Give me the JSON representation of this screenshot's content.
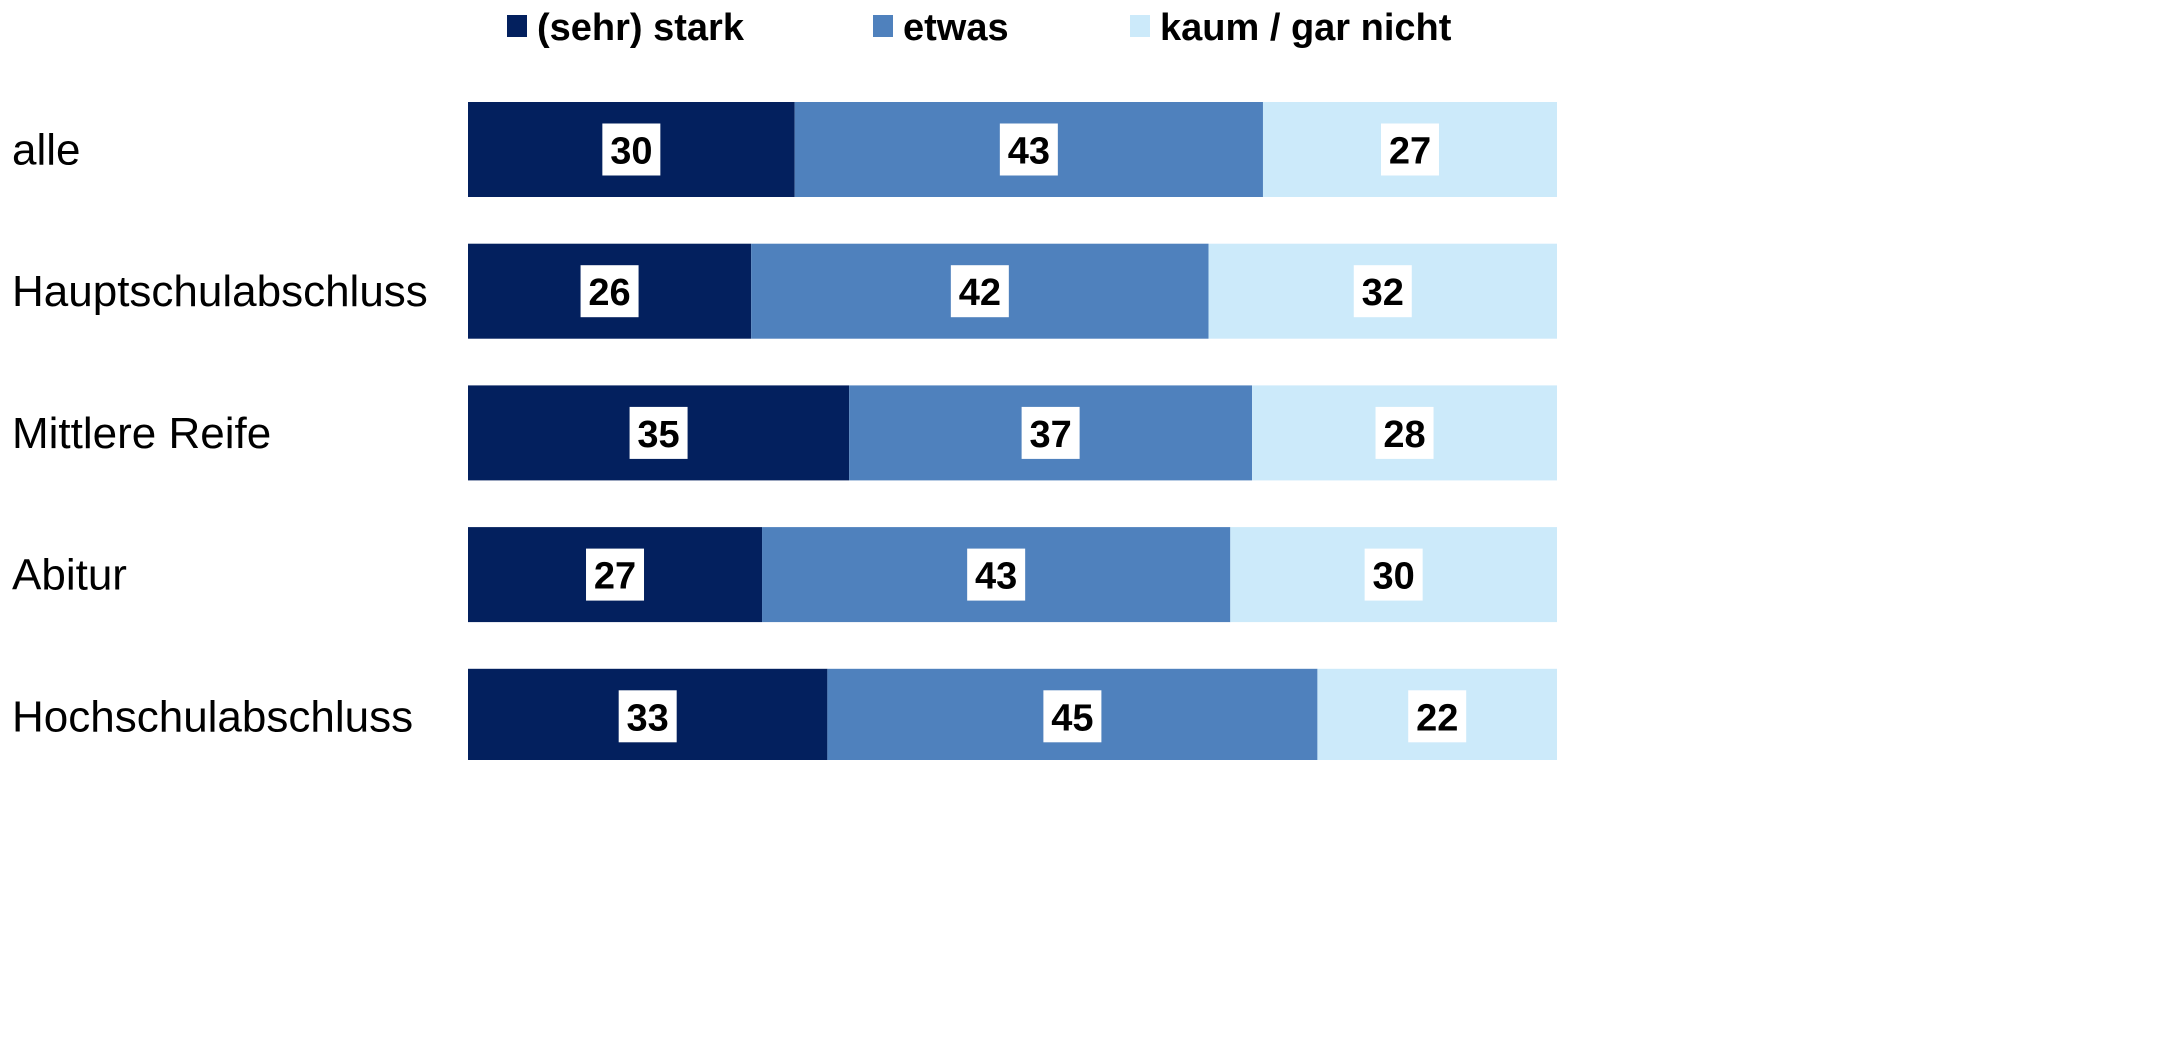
{
  "chart_data": {
    "type": "bar",
    "orientation": "horizontal",
    "stacked": "100%",
    "categories": [
      "alle",
      "Hauptschulabschluss",
      "Mittlere Reife",
      "Abitur",
      "Hochschulabschluss"
    ],
    "series": [
      {
        "name": "(sehr) stark",
        "color": "#03205e",
        "values": [
          30,
          26,
          35,
          27,
          33
        ]
      },
      {
        "name": "etwas",
        "color": "#4f81bd",
        "values": [
          43,
          42,
          37,
          43,
          45
        ]
      },
      {
        "name": "kaum / gar nicht",
        "color": "#cceafa",
        "values": [
          27,
          32,
          28,
          30,
          22
        ]
      }
    ],
    "data_labels": true,
    "legend_position": "top",
    "grid": false,
    "xlim": [
      0,
      100
    ]
  }
}
